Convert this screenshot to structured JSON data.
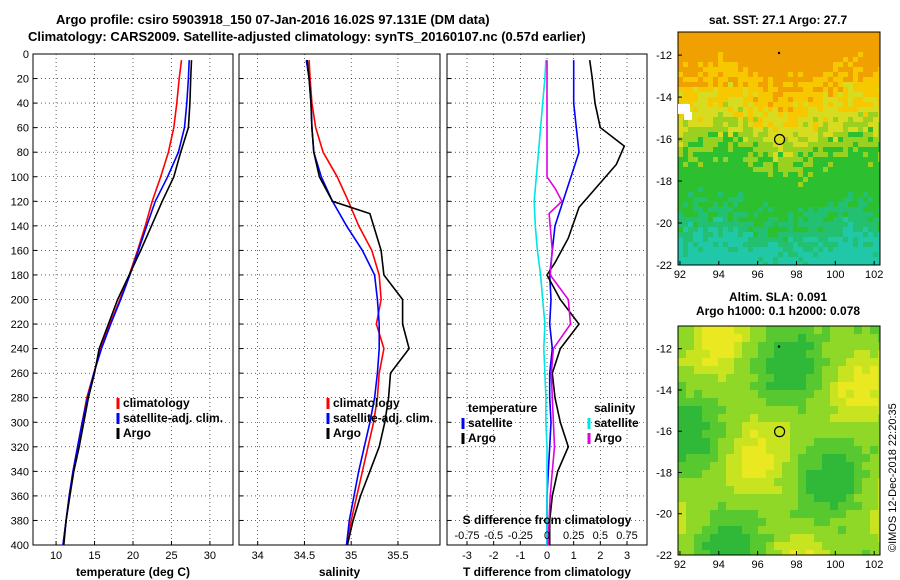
{
  "header": {
    "line1": "Argo profile: csiro 5903918_150 07-Jan-2016 16.02S 97.131E (DM data)",
    "line2": "Climatology: CARS2009. Satellite-adjusted climatology: synTS_20160107.nc (0.57d earlier)"
  },
  "watermark": "©IMOS 12-Dec-2018 22:20:35",
  "colors": {
    "climatology": "#ff0000",
    "satellite": "#0000ff",
    "argo": "#000000",
    "sat_salinity": "#00e5e5",
    "clim_salinity": "#e000e0"
  },
  "chart_data": [
    {
      "type": "line",
      "name": "temperature-profile",
      "xlabel": "temperature (deg C)",
      "ylabel": "",
      "xlim": [
        7,
        33
      ],
      "ylim": [
        400,
        0
      ],
      "x_ticks": [
        10,
        15,
        20,
        25,
        30
      ],
      "y_ticks": [
        0,
        20,
        40,
        60,
        80,
        100,
        120,
        140,
        160,
        180,
        200,
        220,
        240,
        260,
        280,
        300,
        320,
        340,
        360,
        380,
        400
      ],
      "legend": [
        "climatology",
        "satellite-adj. clim.",
        "Argo"
      ],
      "series": [
        {
          "name": "climatology",
          "color_key": "climatology",
          "points": [
            [
              26.3,
              5
            ],
            [
              26.0,
              20
            ],
            [
              25.7,
              40
            ],
            [
              25.3,
              60
            ],
            [
              24.6,
              80
            ],
            [
              23.6,
              100
            ],
            [
              22.5,
              120
            ],
            [
              21.6,
              140
            ],
            [
              20.6,
              160
            ],
            [
              19.5,
              180
            ],
            [
              18.3,
              200
            ],
            [
              17.0,
              220
            ],
            [
              15.8,
              240
            ],
            [
              14.9,
              260
            ],
            [
              14.0,
              280
            ],
            [
              13.4,
              300
            ],
            [
              12.8,
              320
            ],
            [
              12.2,
              340
            ],
            [
              11.7,
              360
            ],
            [
              11.3,
              380
            ],
            [
              10.9,
              400
            ]
          ]
        },
        {
          "name": "satellite-adj. clim.",
          "color_key": "satellite",
          "points": [
            [
              27.3,
              5
            ],
            [
              27.2,
              20
            ],
            [
              27.0,
              40
            ],
            [
              26.7,
              60
            ],
            [
              25.9,
              80
            ],
            [
              24.5,
              100
            ],
            [
              22.9,
              120
            ],
            [
              21.8,
              140
            ],
            [
              20.7,
              160
            ],
            [
              19.6,
              180
            ],
            [
              18.4,
              200
            ],
            [
              17.1,
              220
            ],
            [
              15.9,
              240
            ],
            [
              14.9,
              260
            ],
            [
              14.1,
              280
            ],
            [
              13.4,
              300
            ],
            [
              12.8,
              320
            ],
            [
              12.2,
              340
            ],
            [
              11.7,
              360
            ],
            [
              11.3,
              380
            ],
            [
              10.9,
              400
            ]
          ]
        },
        {
          "name": "Argo",
          "color_key": "argo",
          "points": [
            [
              27.6,
              5
            ],
            [
              27.5,
              20
            ],
            [
              27.4,
              40
            ],
            [
              27.2,
              60
            ],
            [
              26.2,
              80
            ],
            [
              25.3,
              100
            ],
            [
              23.8,
              120
            ],
            [
              22.4,
              140
            ],
            [
              21.0,
              160
            ],
            [
              19.5,
              180
            ],
            [
              18.0,
              200
            ],
            [
              16.8,
              220
            ],
            [
              15.6,
              240
            ],
            [
              15.0,
              260
            ],
            [
              14.2,
              280
            ],
            [
              13.6,
              300
            ],
            [
              13.0,
              320
            ],
            [
              12.3,
              340
            ],
            [
              11.8,
              360
            ],
            [
              11.3,
              380
            ],
            [
              11.0,
              400
            ]
          ]
        }
      ]
    },
    {
      "type": "line",
      "name": "salinity-profile",
      "xlabel": "salinity",
      "ylabel": "",
      "xlim": [
        33.8,
        35.95
      ],
      "ylim": [
        400,
        0
      ],
      "x_ticks": [
        34,
        34.5,
        35,
        35.5
      ],
      "legend": [
        "climatology",
        "satellite-adj. clim.",
        "Argo"
      ],
      "series": [
        {
          "name": "climatology",
          "color_key": "climatology",
          "points": [
            [
              34.55,
              5
            ],
            [
              34.56,
              20
            ],
            [
              34.58,
              40
            ],
            [
              34.62,
              60
            ],
            [
              34.7,
              80
            ],
            [
              34.85,
              100
            ],
            [
              34.97,
              120
            ],
            [
              35.08,
              140
            ],
            [
              35.22,
              160
            ],
            [
              35.3,
              180
            ],
            [
              35.32,
              200
            ],
            [
              35.27,
              220
            ],
            [
              35.35,
              240
            ],
            [
              35.3,
              260
            ],
            [
              35.28,
              280
            ],
            [
              35.24,
              300
            ],
            [
              35.18,
              320
            ],
            [
              35.12,
              340
            ],
            [
              35.06,
              360
            ],
            [
              35.0,
              380
            ],
            [
              34.95,
              400
            ]
          ]
        },
        {
          "name": "satellite-adj. clim.",
          "color_key": "satellite",
          "points": [
            [
              34.52,
              5
            ],
            [
              34.55,
              20
            ],
            [
              34.57,
              40
            ],
            [
              34.58,
              60
            ],
            [
              34.6,
              80
            ],
            [
              34.68,
              100
            ],
            [
              34.8,
              120
            ],
            [
              34.95,
              140
            ],
            [
              35.12,
              160
            ],
            [
              35.25,
              180
            ],
            [
              35.28,
              200
            ],
            [
              35.3,
              220
            ],
            [
              35.3,
              240
            ],
            [
              35.28,
              260
            ],
            [
              35.25,
              280
            ],
            [
              35.2,
              300
            ],
            [
              35.14,
              320
            ],
            [
              35.08,
              340
            ],
            [
              35.03,
              360
            ],
            [
              34.98,
              380
            ],
            [
              34.95,
              400
            ]
          ]
        },
        {
          "name": "Argo",
          "color_key": "argo",
          "points": [
            [
              34.53,
              5
            ],
            [
              34.55,
              20
            ],
            [
              34.57,
              40
            ],
            [
              34.58,
              60
            ],
            [
              34.6,
              80
            ],
            [
              34.66,
              100
            ],
            [
              34.8,
              120
            ],
            [
              35.2,
              130
            ],
            [
              35.32,
              160
            ],
            [
              35.35,
              180
            ],
            [
              35.55,
              200
            ],
            [
              35.55,
              220
            ],
            [
              35.62,
              240
            ],
            [
              35.42,
              260
            ],
            [
              35.4,
              280
            ],
            [
              35.36,
              300
            ],
            [
              35.3,
              320
            ],
            [
              35.2,
              340
            ],
            [
              35.1,
              360
            ],
            [
              35.02,
              380
            ],
            [
              34.96,
              400
            ]
          ]
        }
      ]
    },
    {
      "type": "line",
      "name": "difference-profile",
      "xlabel": "T difference from climatology",
      "x2label": "S difference from climatology",
      "xlim": [
        -3.75,
        3.75
      ],
      "x2lim": [
        -0.9375,
        0.9375
      ],
      "ylim": [
        400,
        0
      ],
      "x_ticks": [
        -3,
        -2,
        -1,
        0,
        1,
        2,
        3
      ],
      "x2_ticks": [
        "-0.75",
        "-0.5",
        "-0.25",
        "0",
        "0.25",
        "0.5",
        "0.75"
      ],
      "legend_temperature_title": "temperature",
      "legend_temperature": [
        "satellite",
        "Argo"
      ],
      "legend_salinity_title": "salinity",
      "legend_salinity": [
        "satellite",
        "Argo"
      ],
      "series": [
        {
          "name": "T satellite",
          "color_key": "satellite",
          "points": [
            [
              1.0,
              5
            ],
            [
              1.0,
              20
            ],
            [
              1.0,
              40
            ],
            [
              1.1,
              60
            ],
            [
              1.2,
              80
            ],
            [
              0.9,
              100
            ],
            [
              0.6,
              120
            ],
            [
              0.3,
              140
            ],
            [
              0.2,
              160
            ],
            [
              0.1,
              180
            ],
            [
              0.15,
              200
            ],
            [
              0.1,
              220
            ],
            [
              0.2,
              240
            ],
            [
              0.1,
              260
            ],
            [
              0.1,
              280
            ],
            [
              0.15,
              300
            ],
            [
              0.1,
              320
            ],
            [
              0.05,
              340
            ],
            [
              0.0,
              360
            ],
            [
              0.0,
              380
            ],
            [
              0.0,
              400
            ]
          ]
        },
        {
          "name": "T Argo",
          "color_key": "argo",
          "points": [
            [
              1.6,
              5
            ],
            [
              1.7,
              20
            ],
            [
              1.8,
              40
            ],
            [
              2.0,
              60
            ],
            [
              2.9,
              75
            ],
            [
              2.6,
              90
            ],
            [
              1.8,
              110
            ],
            [
              1.2,
              125
            ],
            [
              0.8,
              150
            ],
            [
              0.3,
              170
            ],
            [
              0.0,
              180
            ],
            [
              0.5,
              200
            ],
            [
              1.2,
              220
            ],
            [
              0.5,
              240
            ],
            [
              0.2,
              260
            ],
            [
              0.3,
              280
            ],
            [
              0.5,
              300
            ],
            [
              0.8,
              320
            ],
            [
              0.4,
              340
            ],
            [
              0.2,
              360
            ],
            [
              0.1,
              380
            ],
            [
              0.1,
              400
            ]
          ]
        },
        {
          "name": "S satellite",
          "color_key": "sat_salinity",
          "points": [
            [
              -0.01,
              5
            ],
            [
              -0.02,
              20
            ],
            [
              -0.04,
              40
            ],
            [
              -0.06,
              60
            ],
            [
              -0.08,
              80
            ],
            [
              -0.1,
              100
            ],
            [
              -0.12,
              120
            ],
            [
              -0.11,
              140
            ],
            [
              -0.09,
              160
            ],
            [
              -0.06,
              180
            ],
            [
              -0.04,
              200
            ],
            [
              -0.02,
              220
            ],
            [
              -0.03,
              240
            ],
            [
              -0.02,
              260
            ],
            [
              -0.01,
              280
            ],
            [
              -0.01,
              300
            ],
            [
              0.0,
              320
            ],
            [
              0.0,
              340
            ],
            [
              0.0,
              360
            ],
            [
              0.0,
              380
            ],
            [
              0.0,
              400
            ]
          ]
        },
        {
          "name": "S Argo",
          "color_key": "clim_salinity",
          "points": [
            [
              0.0,
              5
            ],
            [
              0.0,
              20
            ],
            [
              0.0,
              40
            ],
            [
              0.0,
              60
            ],
            [
              0.0,
              80
            ],
            [
              0.0,
              100
            ],
            [
              0.08,
              110
            ],
            [
              0.14,
              120
            ],
            [
              0.02,
              130
            ],
            [
              0.05,
              160
            ],
            [
              0.03,
              180
            ],
            [
              0.2,
              200
            ],
            [
              0.22,
              220
            ],
            [
              0.06,
              240
            ],
            [
              0.04,
              260
            ],
            [
              0.05,
              280
            ],
            [
              0.06,
              300
            ],
            [
              0.07,
              320
            ],
            [
              0.05,
              340
            ],
            [
              0.03,
              360
            ],
            [
              0.02,
              380
            ],
            [
              0.01,
              400
            ]
          ]
        }
      ]
    },
    {
      "type": "heatmap",
      "name": "sst-map",
      "title": "sat. SST: 27.1  Argo: 27.7",
      "x_ticks": [
        92,
        94,
        96,
        98,
        100,
        102
      ],
      "y_ticks": [
        -12,
        -14,
        -16,
        -18,
        -20,
        -22
      ],
      "xlim": [
        91.9,
        102.3
      ],
      "ylim": [
        -22,
        -10.9
      ],
      "marker": [
        97.13,
        -16.02
      ]
    },
    {
      "type": "heatmap",
      "name": "sla-map",
      "title_line1": "Altim. SLA: 0.091",
      "title_line2": "Argo h1000: 0.1  h2000: 0.078",
      "x_ticks": [
        92,
        94,
        96,
        98,
        100,
        102
      ],
      "y_ticks": [
        -12,
        -14,
        -16,
        -18,
        -20,
        -22
      ],
      "xlim": [
        91.9,
        102.3
      ],
      "ylim": [
        -22,
        -10.9
      ],
      "marker": [
        97.13,
        -16.02
      ]
    }
  ]
}
